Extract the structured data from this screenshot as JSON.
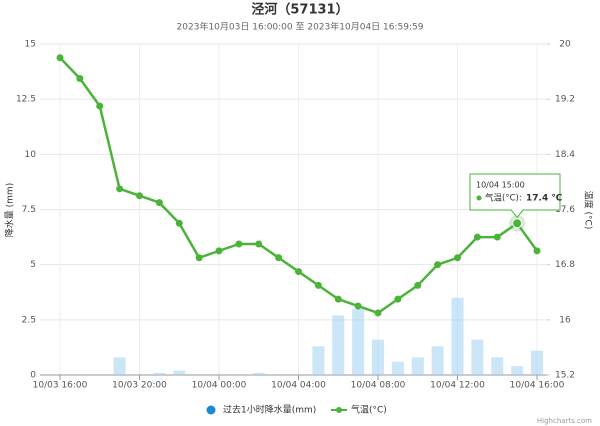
{
  "chart_data": {
    "type": "bar-line",
    "title": "泾河（57131）",
    "subtitle": "2023年10月03日 16:00:00 至 2023年10月04日 16:59:59",
    "y_label": "降水量 (mm)",
    "y2_label": "温度 (°C)",
    "categories": [
      "10/03 16:00",
      null,
      null,
      null,
      "10/03 20:00",
      null,
      null,
      null,
      "10/04 00:00",
      null,
      null,
      null,
      "10/04 04:00",
      null,
      null,
      null,
      "10/04 08:00",
      null,
      null,
      null,
      "10/04 12:00",
      null,
      null,
      null,
      "10/04 16:00"
    ],
    "series": [
      {
        "name": "过去1小时降水量(mm)",
        "type": "bar",
        "color": "#9fd2f0",
        "values": [
          0,
          0,
          0,
          0.8,
          0,
          0.1,
          0.2,
          0,
          0,
          0,
          0.1,
          0,
          0,
          1.3,
          2.7,
          3.0,
          1.6,
          0.6,
          0.8,
          1.3,
          3.5,
          1.6,
          0.8,
          0.4,
          1.1
        ]
      },
      {
        "name": "气温(°C)",
        "type": "line",
        "axis": "y2",
        "color": "#4cb33a",
        "values": [
          19.8,
          19.5,
          19.1,
          17.9,
          17.8,
          17.7,
          17.4,
          16.9,
          17.0,
          17.1,
          17.1,
          16.9,
          16.7,
          16.5,
          16.3,
          16.2,
          16.1,
          16.3,
          16.5,
          16.8,
          16.9,
          17.2,
          17.2,
          17.4,
          17.0
        ]
      }
    ],
    "ylim": [
      0,
      15
    ],
    "yticks": [
      0,
      2.5,
      5,
      7.5,
      10,
      12.5,
      15
    ],
    "y2lim": [
      15.2,
      20
    ],
    "y2ticks": [
      15.2,
      16,
      16.8,
      17.6,
      18.4,
      19.2,
      20
    ],
    "grid": true,
    "tooltip": {
      "header": "10/04 15:00",
      "label": "气温(°C):",
      "value": "17.4 ℃"
    },
    "credits": "Highcharts.com"
  }
}
